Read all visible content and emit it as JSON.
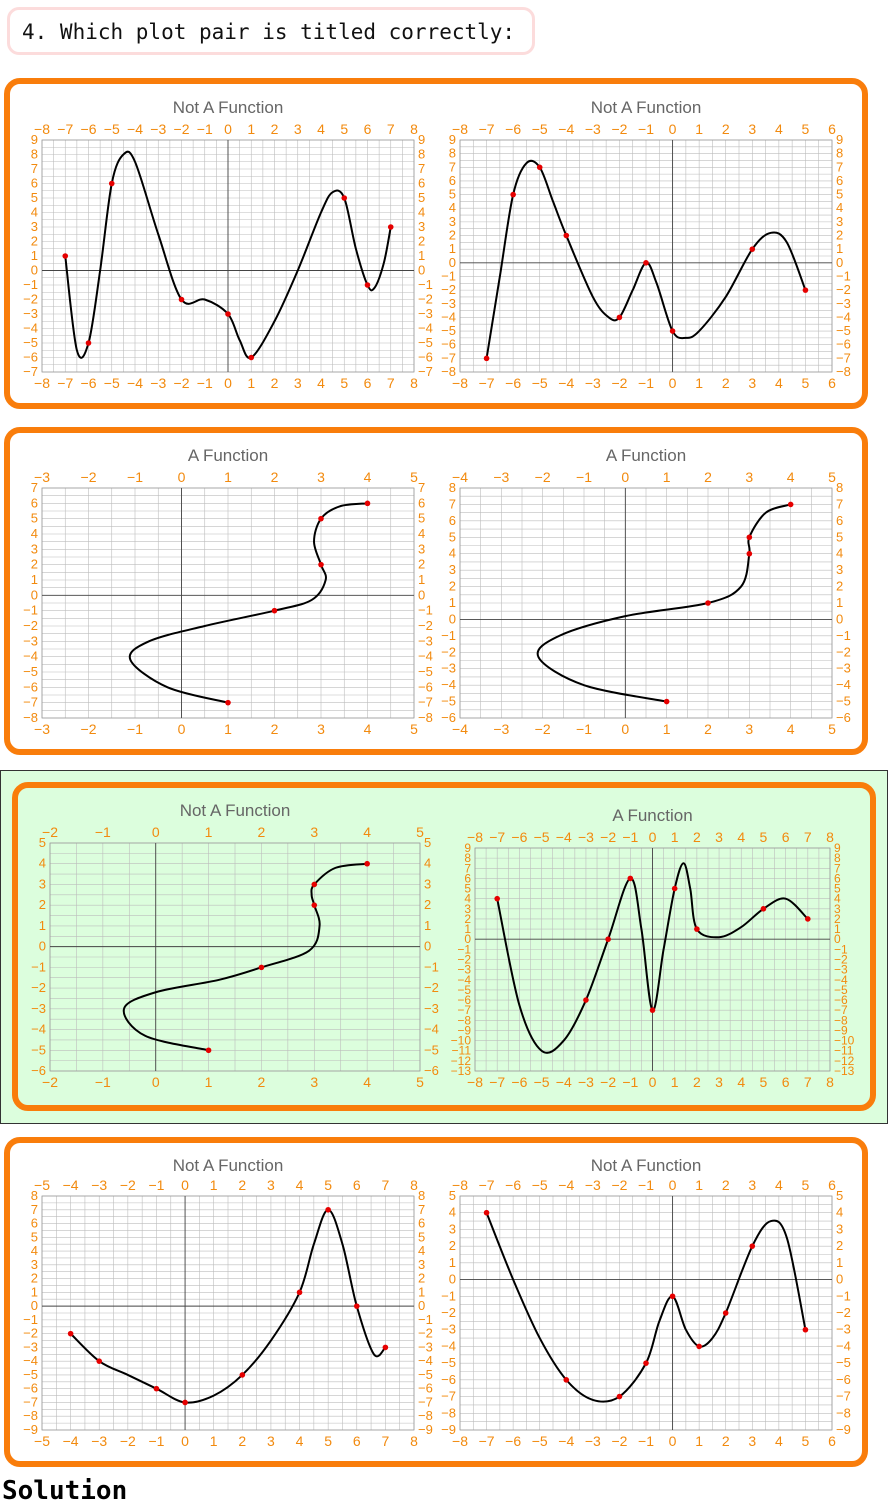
{
  "question": "4. Which plot pair is titled correctly:",
  "solution_label": "Solution",
  "colors": {
    "frame": "#f97d0b",
    "tick": "#f28a0e",
    "point": "#e60000",
    "highlight": "#dcfedd",
    "title": "#666666",
    "grid": "#bdbdbd"
  },
  "chart_data": [
    {
      "pair": 1,
      "title": "Not A Function",
      "type": "line",
      "xlim": [
        -8,
        8
      ],
      "ylim": [
        -7,
        9
      ],
      "grid": true,
      "points": [
        [
          -7,
          1
        ],
        [
          -6,
          -5
        ],
        [
          -5,
          6
        ],
        [
          -2,
          -2
        ],
        [
          0,
          -3
        ],
        [
          1,
          -6
        ],
        [
          5,
          5
        ],
        [
          6,
          -1
        ],
        [
          7,
          3
        ]
      ],
      "curve": [
        [
          -7,
          1
        ],
        [
          -6.5,
          -5.5
        ],
        [
          -6,
          -5
        ],
        [
          -5.5,
          0
        ],
        [
          -5,
          6
        ],
        [
          -4.5,
          8
        ],
        [
          -4,
          7.5
        ],
        [
          -3,
          2.5
        ],
        [
          -2,
          -2
        ],
        [
          -1,
          -2
        ],
        [
          0,
          -3
        ],
        [
          0.5,
          -4.8
        ],
        [
          1,
          -6
        ],
        [
          2,
          -3.5
        ],
        [
          3,
          0
        ],
        [
          4,
          4
        ],
        [
          4.5,
          5.4
        ],
        [
          5,
          5
        ],
        [
          5.5,
          1.5
        ],
        [
          6,
          -1
        ],
        [
          6.3,
          -1.2
        ],
        [
          6.7,
          0.5
        ],
        [
          7,
          3
        ]
      ]
    },
    {
      "pair": 1,
      "title": "Not A Function",
      "type": "line",
      "xlim": [
        -8,
        6
      ],
      "ylim": [
        -8,
        9
      ],
      "grid": true,
      "points": [
        [
          -7,
          -7
        ],
        [
          -6,
          5
        ],
        [
          -5,
          7
        ],
        [
          -4,
          2
        ],
        [
          -2,
          -4
        ],
        [
          -1,
          0
        ],
        [
          0,
          -5
        ],
        [
          3,
          1
        ],
        [
          5,
          -2
        ]
      ],
      "curve": [
        [
          -7,
          -7
        ],
        [
          -6.5,
          -1
        ],
        [
          -6,
          5
        ],
        [
          -5.5,
          7.3
        ],
        [
          -5,
          7
        ],
        [
          -4.5,
          4.5
        ],
        [
          -4,
          2
        ],
        [
          -3,
          -2.5
        ],
        [
          -2.4,
          -4
        ],
        [
          -2,
          -4
        ],
        [
          -1.5,
          -2
        ],
        [
          -1,
          0
        ],
        [
          -0.6,
          -1.5
        ],
        [
          0,
          -5
        ],
        [
          0.5,
          -5.5
        ],
        [
          1,
          -5
        ],
        [
          2,
          -2.5
        ],
        [
          3,
          1
        ],
        [
          3.7,
          2.2
        ],
        [
          4.3,
          1.5
        ],
        [
          5,
          -2
        ]
      ]
    },
    {
      "pair": 2,
      "title": "A Function",
      "type": "line",
      "xlim": [
        -3,
        5
      ],
      "ylim": [
        -8,
        7
      ],
      "grid": true,
      "points": [
        [
          1,
          -7
        ],
        [
          2,
          -1
        ],
        [
          3,
          2
        ],
        [
          3,
          5
        ],
        [
          4,
          6
        ]
      ],
      "curve": [
        [
          1,
          -7
        ],
        [
          -0.3,
          -6
        ],
        [
          -1.1,
          -4.2
        ],
        [
          -0.7,
          -3
        ],
        [
          0.5,
          -2
        ],
        [
          2,
          -1
        ],
        [
          2.8,
          -0.3
        ],
        [
          3.1,
          1
        ],
        [
          3,
          2
        ],
        [
          2.85,
          3.5
        ],
        [
          3,
          5
        ],
        [
          3.4,
          5.8
        ],
        [
          4,
          6
        ]
      ]
    },
    {
      "pair": 2,
      "title": "A Function",
      "type": "line",
      "xlim": [
        -4,
        5
      ],
      "ylim": [
        -6,
        8
      ],
      "grid": true,
      "points": [
        [
          1,
          -5
        ],
        [
          2,
          1
        ],
        [
          3,
          4
        ],
        [
          3,
          5
        ],
        [
          4,
          7
        ]
      ],
      "curve": [
        [
          1,
          -5
        ],
        [
          -1,
          -4
        ],
        [
          -2.1,
          -2.3
        ],
        [
          -1.6,
          -1
        ],
        [
          0,
          0.2
        ],
        [
          2,
          1
        ],
        [
          2.8,
          2
        ],
        [
          3,
          4
        ],
        [
          3,
          5
        ],
        [
          3.4,
          6.5
        ],
        [
          4,
          7
        ]
      ]
    },
    {
      "pair": 3,
      "title": "Not A Function",
      "type": "line",
      "xlim": [
        -2,
        5
      ],
      "ylim": [
        -6,
        5
      ],
      "grid": true,
      "points": [
        [
          1,
          -5
        ],
        [
          2,
          -1
        ],
        [
          3,
          2
        ],
        [
          3,
          3
        ],
        [
          4,
          4
        ]
      ],
      "curve": [
        [
          1,
          -5
        ],
        [
          -0.2,
          -4.3
        ],
        [
          -0.6,
          -3
        ],
        [
          0,
          -2.2
        ],
        [
          1.2,
          -1.6
        ],
        [
          2,
          -1
        ],
        [
          2.9,
          -0.2
        ],
        [
          3.1,
          1
        ],
        [
          3,
          2
        ],
        [
          2.95,
          2.5
        ],
        [
          3,
          3
        ],
        [
          3.4,
          3.8
        ],
        [
          4,
          4
        ]
      ]
    },
    {
      "pair": 3,
      "title": "A Function",
      "type": "line",
      "xlim": [
        -8,
        8
      ],
      "ylim": [
        -13,
        9
      ],
      "grid": true,
      "points": [
        [
          -7,
          4
        ],
        [
          -3,
          -6
        ],
        [
          -2,
          0
        ],
        [
          -1,
          6
        ],
        [
          0,
          -7
        ],
        [
          1,
          5
        ],
        [
          2,
          1
        ],
        [
          5,
          3
        ],
        [
          7,
          2
        ]
      ],
      "curve": [
        [
          -7,
          4
        ],
        [
          -6,
          -6.5
        ],
        [
          -5,
          -11
        ],
        [
          -4,
          -10
        ],
        [
          -3,
          -6
        ],
        [
          -2,
          0
        ],
        [
          -1,
          6
        ],
        [
          -0.5,
          1
        ],
        [
          0,
          -7
        ],
        [
          0.5,
          -1
        ],
        [
          1,
          5
        ],
        [
          1.4,
          7.5
        ],
        [
          1.7,
          5
        ],
        [
          2,
          1
        ],
        [
          3,
          0.2
        ],
        [
          4,
          1.2
        ],
        [
          5,
          3
        ],
        [
          6,
          4
        ],
        [
          7,
          2
        ]
      ]
    },
    {
      "pair": 4,
      "title": "Not A Function",
      "type": "line",
      "xlim": [
        -5,
        8
      ],
      "ylim": [
        -9,
        8
      ],
      "grid": true,
      "points": [
        [
          -4,
          -2
        ],
        [
          -3,
          -4
        ],
        [
          -1,
          -6
        ],
        [
          0,
          -7
        ],
        [
          2,
          -5
        ],
        [
          4,
          1
        ],
        [
          5,
          7
        ],
        [
          6,
          0
        ],
        [
          7,
          -3
        ]
      ],
      "curve": [
        [
          -4,
          -2
        ],
        [
          -3,
          -4
        ],
        [
          -2,
          -5
        ],
        [
          -1,
          -6
        ],
        [
          0,
          -7
        ],
        [
          1,
          -6.5
        ],
        [
          2,
          -5
        ],
        [
          3,
          -2.5
        ],
        [
          4,
          1
        ],
        [
          4.5,
          4.5
        ],
        [
          5,
          7
        ],
        [
          5.5,
          4.5
        ],
        [
          6,
          0
        ],
        [
          6.6,
          -3.5
        ],
        [
          7,
          -3
        ]
      ]
    },
    {
      "pair": 4,
      "title": "Not A Function",
      "type": "line",
      "xlim": [
        -8,
        6
      ],
      "ylim": [
        -9,
        5
      ],
      "grid": true,
      "points": [
        [
          -7,
          4
        ],
        [
          -4,
          -6
        ],
        [
          -2,
          -7
        ],
        [
          -1,
          -5
        ],
        [
          0,
          -1
        ],
        [
          1,
          -4
        ],
        [
          2,
          -2
        ],
        [
          3,
          2
        ],
        [
          5,
          -3
        ]
      ],
      "curve": [
        [
          -7,
          4
        ],
        [
          -6,
          0
        ],
        [
          -5,
          -3.5
        ],
        [
          -4,
          -6
        ],
        [
          -3,
          -7.2
        ],
        [
          -2,
          -7
        ],
        [
          -1,
          -5
        ],
        [
          -0.5,
          -2.5
        ],
        [
          0,
          -1
        ],
        [
          0.5,
          -3
        ],
        [
          1,
          -4
        ],
        [
          1.5,
          -3.5
        ],
        [
          2,
          -2
        ],
        [
          3,
          2
        ],
        [
          3.7,
          3.5
        ],
        [
          4.3,
          2.5
        ],
        [
          5,
          -3
        ]
      ]
    }
  ]
}
